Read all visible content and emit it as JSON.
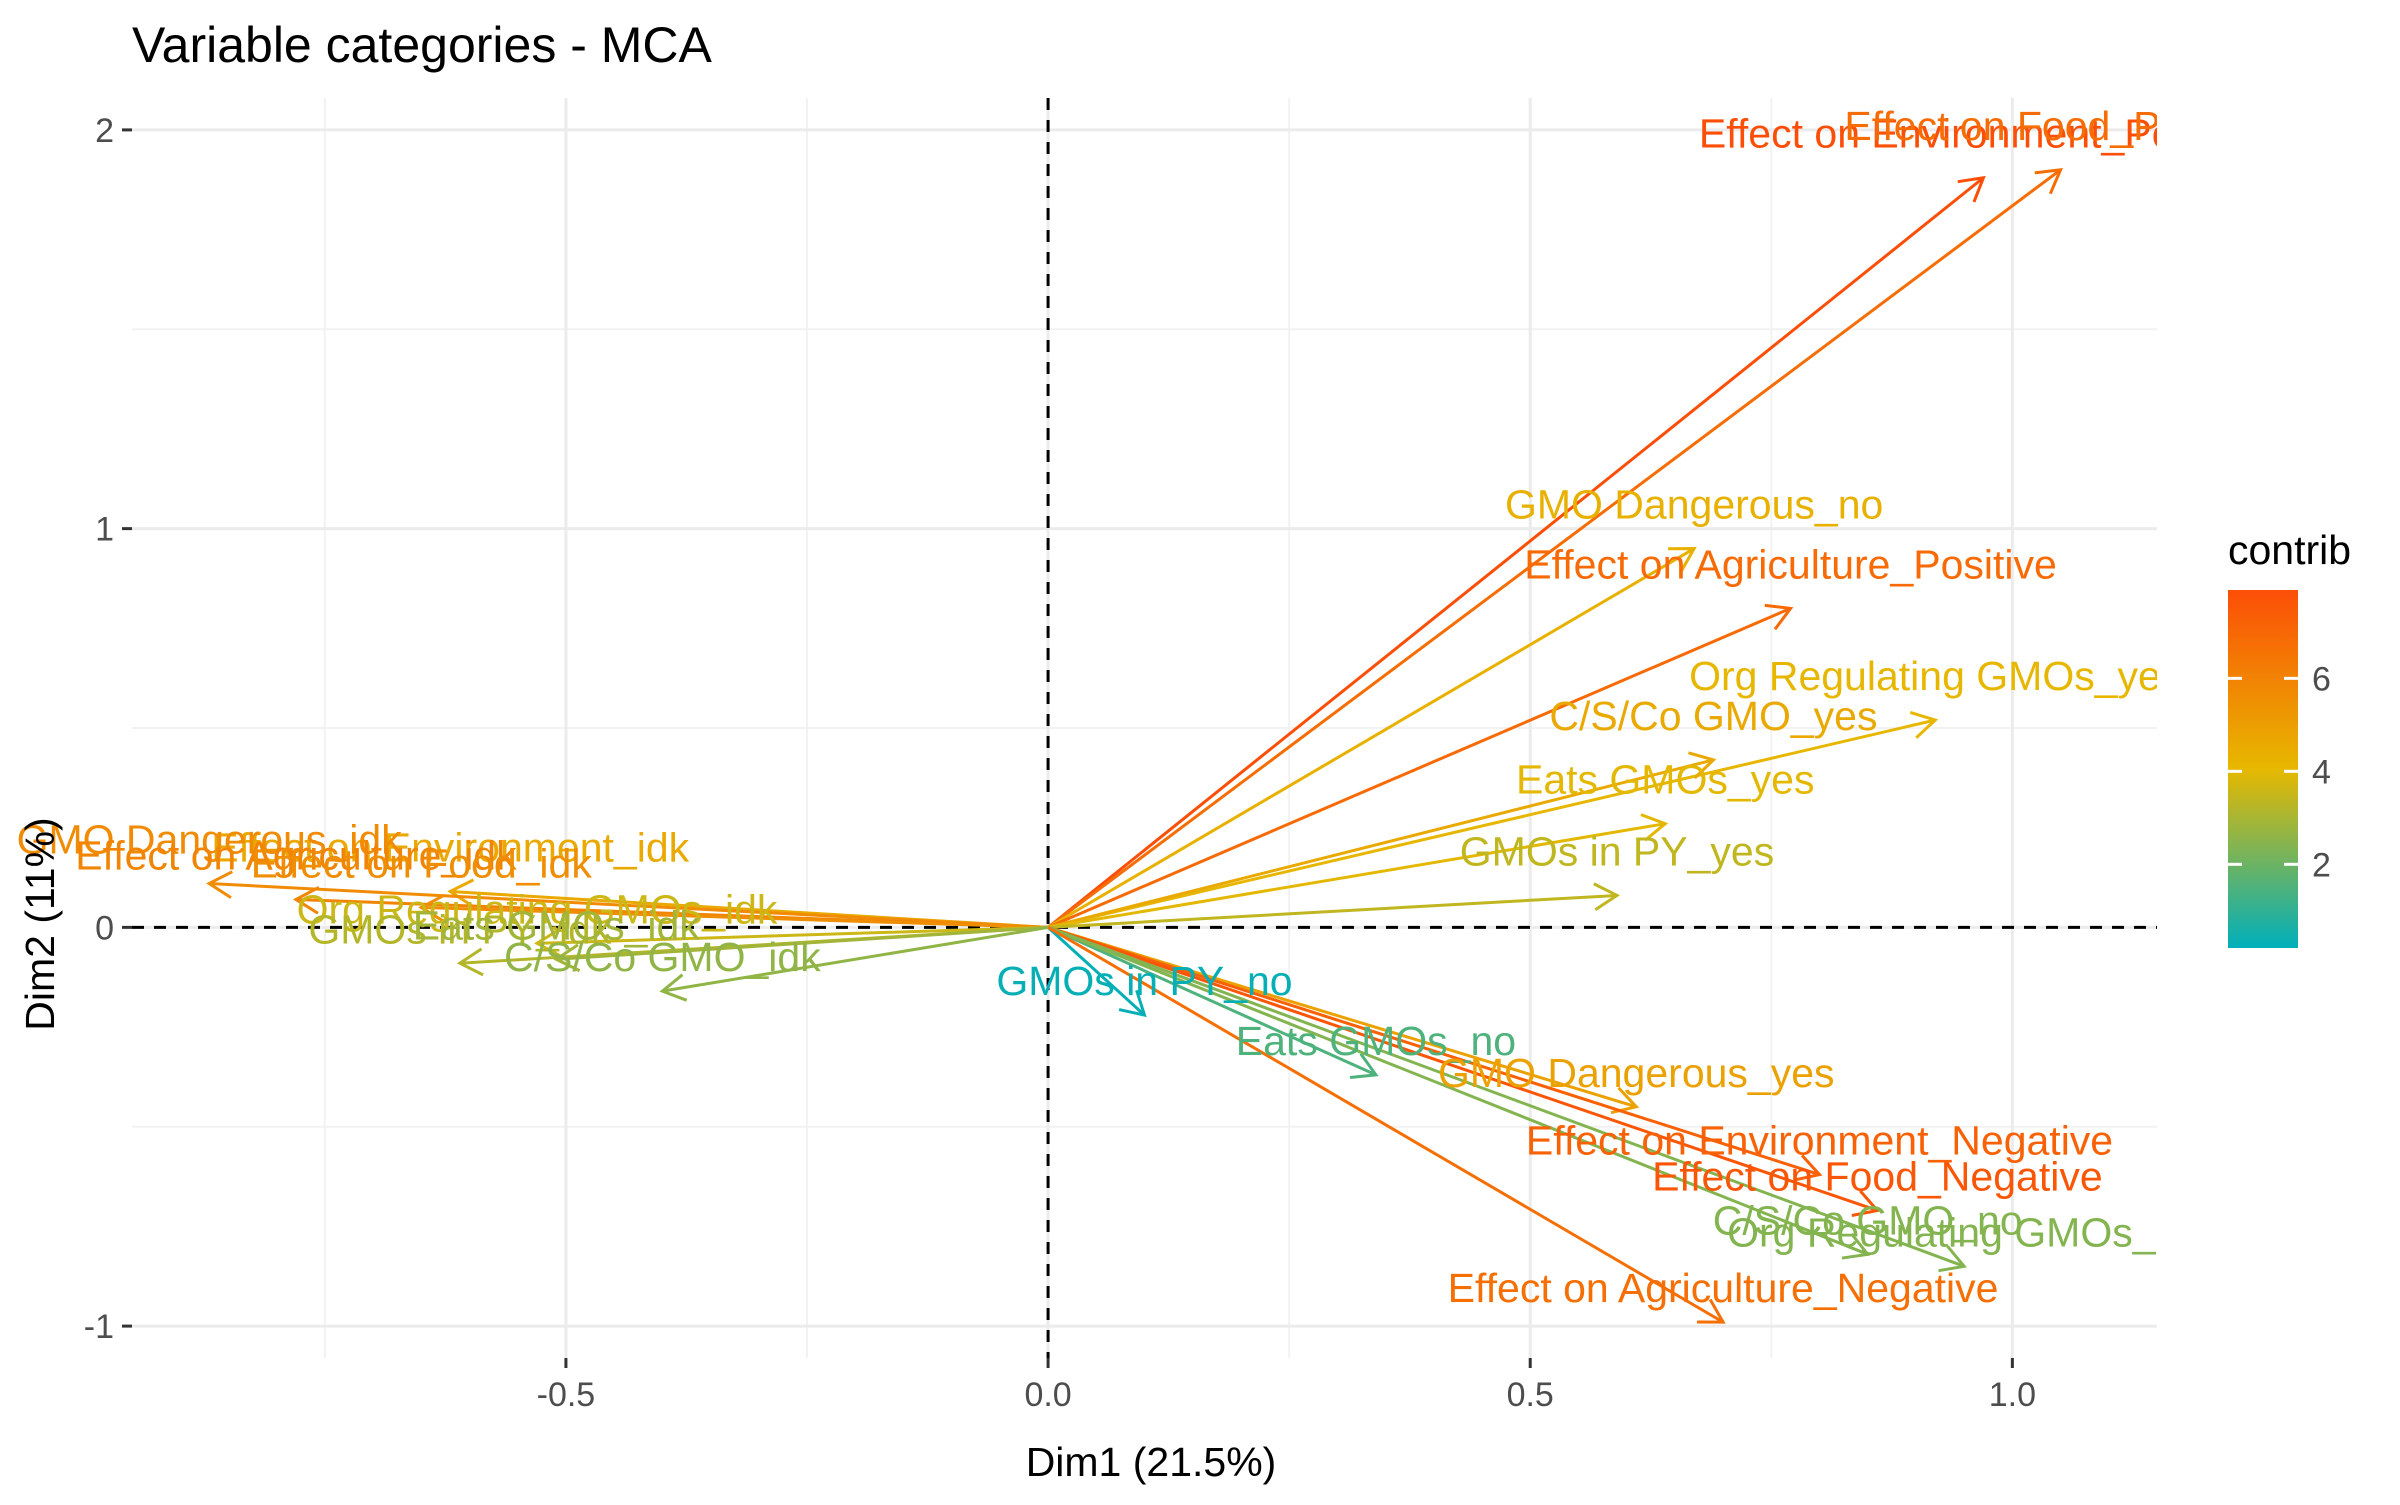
{
  "chart_data": {
    "type": "scatter",
    "title": "Variable categories - MCA",
    "xlabel": "Dim1 (21.5%)",
    "ylabel": "Dim2 (11%)",
    "xlim": [
      -0.95,
      1.15
    ],
    "ylim": [
      -1.08,
      2.08
    ],
    "x_ticks": [
      -0.5,
      0.0,
      0.5,
      1.0
    ],
    "x_tick_labels": [
      "-0.5",
      "0.0",
      "0.5",
      "1.0"
    ],
    "y_ticks": [
      -1,
      0,
      1,
      2
    ],
    "y_tick_labels": [
      "-1",
      "0",
      "1",
      "2"
    ],
    "grid": true,
    "reference_lines": {
      "x": 0,
      "y": 0,
      "style": "dashed"
    },
    "legend": {
      "title": "contrib",
      "position": "right",
      "range": [
        0.2,
        7.9
      ],
      "ticks": [
        2,
        4,
        6
      ],
      "tick_labels": [
        "2",
        "4",
        "6"
      ],
      "colors": [
        "#00AFBB",
        "#E7B800",
        "#FC4E07"
      ]
    },
    "points": [
      {
        "label": "Effect on Environment_Positive",
        "x": 0.97,
        "y": 1.88,
        "contrib": 7.9
      },
      {
        "label": "Effect on Food_Positive",
        "x": 1.05,
        "y": 1.9,
        "contrib": 6.8
      },
      {
        "label": "GMO Dangerous_no",
        "x": 0.67,
        "y": 0.95,
        "contrib": 4.3
      },
      {
        "label": "Effect on Agriculture_Positive",
        "x": 0.77,
        "y": 0.8,
        "contrib": 6.9
      },
      {
        "label": "Org Regulating GMOs_yes",
        "x": 0.92,
        "y": 0.52,
        "contrib": 4.1
      },
      {
        "label": "C/S/Co GMO_yes",
        "x": 0.69,
        "y": 0.42,
        "contrib": 4.6
      },
      {
        "label": "Eats GMOs_yes",
        "x": 0.64,
        "y": 0.26,
        "contrib": 4.0
      },
      {
        "label": "GMOs in PY_yes",
        "x": 0.59,
        "y": 0.08,
        "contrib": 3.4
      },
      {
        "label": "GMOs in PY_no",
        "x": 0.1,
        "y": -0.22,
        "contrib": 0.3
      },
      {
        "label": "Eats GMOs_no",
        "x": 0.34,
        "y": -0.37,
        "contrib": 1.5
      },
      {
        "label": "GMO Dangerous_yes",
        "x": 0.61,
        "y": -0.45,
        "contrib": 4.9
      },
      {
        "label": "Effect on Environment_Negative",
        "x": 0.8,
        "y": -0.62,
        "contrib": 7.2
      },
      {
        "label": "Effect on Food_Negative",
        "x": 0.86,
        "y": -0.71,
        "contrib": 7.6
      },
      {
        "label": "C/S/Co GMO_no",
        "x": 0.85,
        "y": -0.82,
        "contrib": 2.4
      },
      {
        "label": "Org Regulating GMOs_no",
        "x": 0.95,
        "y": -0.85,
        "contrib": 2.4
      },
      {
        "label": "Effect on Agriculture_Negative",
        "x": 0.7,
        "y": -0.99,
        "contrib": 6.7
      },
      {
        "label": "Effect on Environment_idk",
        "x": -0.62,
        "y": 0.09,
        "contrib": 4.6
      },
      {
        "label": "GMO Dangerous_idk",
        "x": -0.87,
        "y": 0.11,
        "contrib": 5.7
      },
      {
        "label": "Effect on Agriculture_idk",
        "x": -0.78,
        "y": 0.07,
        "contrib": 5.9
      },
      {
        "label": "Effect on Food_idk",
        "x": -0.65,
        "y": 0.05,
        "contrib": 5.6
      },
      {
        "label": "Org Regulating GMOs_idk",
        "x": -0.53,
        "y": -0.04,
        "contrib": 3.6
      },
      {
        "label": "GMOs in PY_idk",
        "x": -0.61,
        "y": -0.09,
        "contrib": 3.2
      },
      {
        "label": "Eats GMOs_idk",
        "x": -0.51,
        "y": -0.08,
        "contrib": 2.9
      },
      {
        "label": "C/S/Co GMO_idk",
        "x": -0.4,
        "y": -0.16,
        "contrib": 2.6
      }
    ]
  }
}
